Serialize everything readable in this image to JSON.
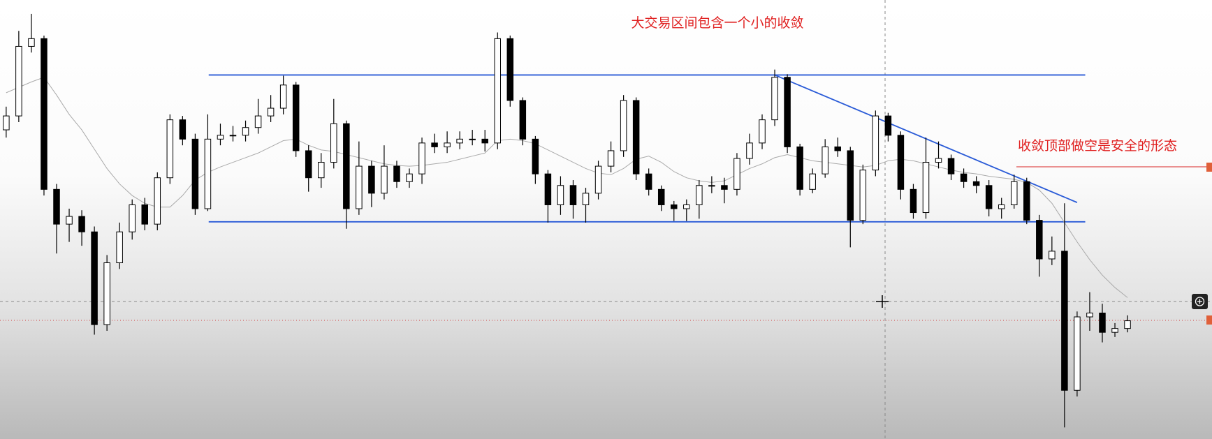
{
  "chart_data": {
    "type": "candlestick",
    "annotations": [
      "大交易区间包含一个小的收敛",
      "收敛顶部做空是安全的形态"
    ],
    "annotation_color": "#e02020",
    "up_color": "#ffffff",
    "down_color": "#000000",
    "ylim": [
      0,
      568
    ],
    "open": [
      400,
      418,
      508,
      518,
      323,
      278,
      288,
      268,
      148,
      228,
      268,
      303,
      278,
      338,
      413,
      388,
      298,
      388,
      393,
      393,
      403,
      418,
      428,
      458,
      373,
      338,
      358,
      408,
      298,
      353,
      318,
      353,
      333,
      343,
      383,
      378,
      383,
      388,
      388,
      383,
      518,
      438,
      388,
      343,
      303,
      328,
      303,
      318,
      353,
      373,
      438,
      343,
      323,
      303,
      298,
      303,
      328,
      328,
      323,
      363,
      383,
      413,
      468,
      378,
      323,
      343,
      378,
      373,
      283,
      348,
      418,
      393,
      323,
      293,
      358,
      363,
      343,
      333,
      328,
      298,
      303,
      333,
      283,
      233,
      243,
      63,
      158,
      163,
      138,
      143
    ],
    "high": [
      430,
      528,
      550,
      522,
      330,
      298,
      296,
      275,
      238,
      280,
      310,
      312,
      345,
      420,
      418,
      395,
      420,
      408,
      405,
      412,
      440,
      445,
      470,
      462,
      380,
      370,
      440,
      412,
      385,
      360,
      380,
      360,
      350,
      390,
      395,
      398,
      398,
      400,
      400,
      526,
      522,
      442,
      392,
      348,
      340,
      335,
      325,
      360,
      385,
      445,
      442,
      350,
      328,
      308,
      310,
      335,
      340,
      338,
      370,
      395,
      420,
      478,
      472,
      382,
      350,
      388,
      390,
      378,
      355,
      425,
      422,
      398,
      330,
      390,
      385,
      368,
      350,
      340,
      335,
      312,
      342,
      338,
      290,
      262,
      305,
      165,
      190,
      175,
      150,
      160
    ],
    "low": [
      390,
      410,
      500,
      315,
      240,
      255,
      250,
      135,
      140,
      220,
      258,
      270,
      270,
      330,
      380,
      290,
      295,
      380,
      385,
      385,
      395,
      410,
      420,
      365,
      320,
      325,
      350,
      272,
      290,
      300,
      310,
      325,
      325,
      330,
      370,
      370,
      375,
      380,
      372,
      375,
      430,
      380,
      330,
      280,
      290,
      285,
      280,
      310,
      345,
      365,
      335,
      315,
      295,
      282,
      282,
      285,
      318,
      305,
      315,
      355,
      375,
      405,
      370,
      315,
      318,
      338,
      365,
      248,
      278,
      340,
      385,
      310,
      285,
      285,
      350,
      335,
      325,
      318,
      288,
      285,
      298,
      278,
      210,
      225,
      15,
      55,
      140,
      125,
      132,
      138
    ],
    "close": [
      418,
      508,
      518,
      323,
      278,
      288,
      268,
      148,
      228,
      268,
      303,
      278,
      338,
      413,
      388,
      298,
      388,
      393,
      393,
      403,
      418,
      428,
      458,
      373,
      338,
      358,
      408,
      298,
      353,
      318,
      353,
      333,
      343,
      383,
      378,
      383,
      388,
      388,
      383,
      518,
      438,
      388,
      343,
      303,
      328,
      303,
      318,
      353,
      373,
      438,
      343,
      323,
      303,
      298,
      303,
      328,
      328,
      323,
      363,
      383,
      413,
      468,
      378,
      323,
      343,
      378,
      373,
      283,
      348,
      418,
      393,
      323,
      293,
      358,
      363,
      343,
      333,
      328,
      298,
      303,
      333,
      283,
      233,
      243,
      63,
      158,
      163,
      138,
      143,
      153
    ],
    "ma": {
      "color": "#aaaaaa",
      "values": [
        448,
        455,
        462,
        468,
        445,
        420,
        400,
        375,
        350,
        330,
        315,
        305,
        300,
        300,
        315,
        335,
        345,
        352,
        358,
        364,
        370,
        378,
        386,
        388,
        380,
        374,
        372,
        368,
        364,
        360,
        356,
        354,
        353,
        354,
        356,
        358,
        362,
        366,
        370,
        386,
        388,
        386,
        382,
        374,
        366,
        358,
        350,
        344,
        342,
        350,
        362,
        366,
        358,
        346,
        338,
        334,
        332,
        334,
        342,
        350,
        356,
        364,
        368,
        364,
        360,
        358,
        356,
        354,
        352,
        354,
        360,
        362,
        360,
        356,
        352,
        348,
        345,
        343,
        340,
        338,
        336,
        332,
        322,
        305,
        280,
        255,
        232,
        212,
        196,
        183
      ]
    },
    "levels": {
      "color": "#2a5bd7",
      "values": [
        471,
        281
      ]
    },
    "trendline": {
      "color": "#2a5bd7",
      "x": [
        61,
        85
      ],
      "y": [
        471,
        306
      ]
    }
  }
}
